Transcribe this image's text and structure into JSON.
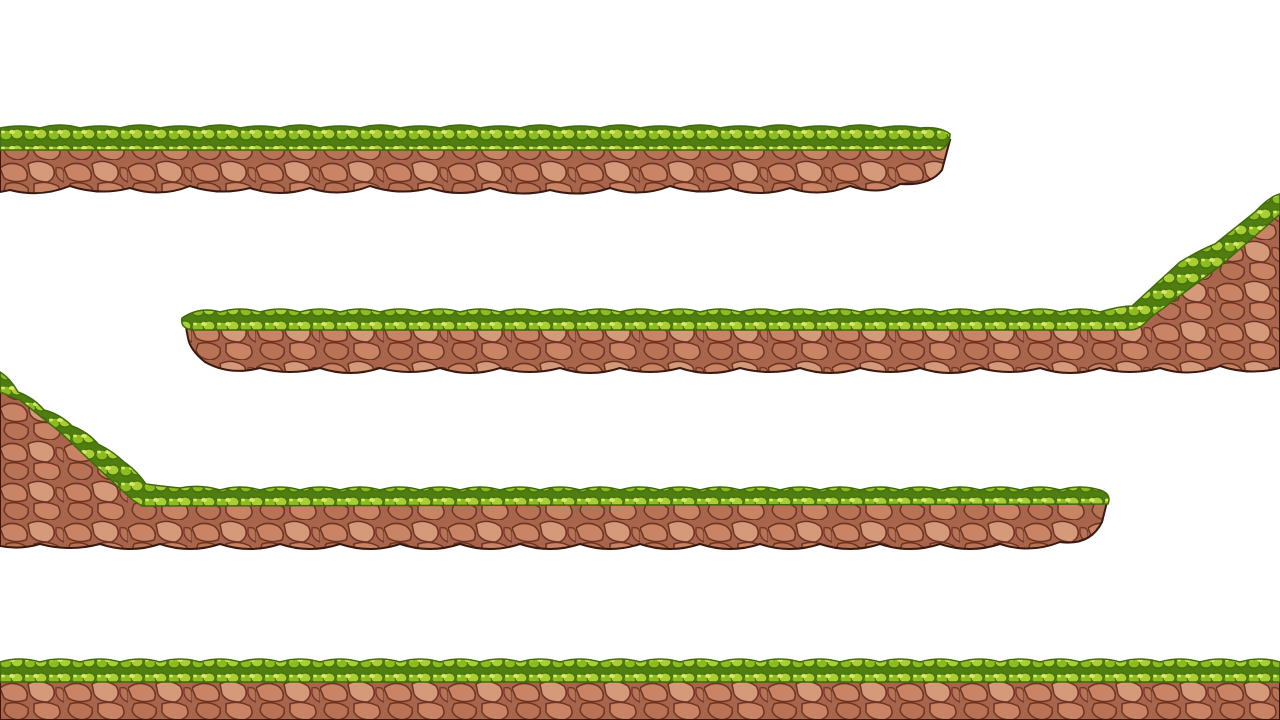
{
  "scene": {
    "background_color": "#ffffff",
    "platforms": [
      {
        "name": "platform-top-left",
        "kind": "floating",
        "slope": "none"
      },
      {
        "name": "platform-middle-right",
        "kind": "floating",
        "slope": "ramp-up-right"
      },
      {
        "name": "platform-lower-left",
        "kind": "floating",
        "slope": "ramp-up-left"
      },
      {
        "name": "ground-floor",
        "kind": "ground",
        "slope": "none"
      }
    ]
  },
  "palette": {
    "grass_dark": "#4f7d10",
    "grass_mid": "#7fae1c",
    "grass_light": "#c9e04a",
    "rock_dark": "#6b3423",
    "rock_base": "#a9654b",
    "rock_light": "#d59a7a",
    "rock_outline": "#3a1a10"
  }
}
